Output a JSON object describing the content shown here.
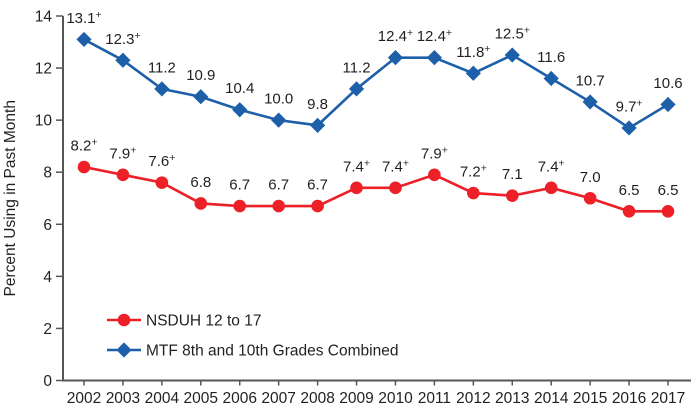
{
  "chart_data": {
    "type": "line",
    "x": [
      2002,
      2003,
      2004,
      2005,
      2006,
      2007,
      2008,
      2009,
      2010,
      2011,
      2012,
      2013,
      2014,
      2015,
      2016,
      2017
    ],
    "series": [
      {
        "name": "NSDUH 12 to 17",
        "color": "#ed2028",
        "marker": "circle",
        "values": [
          8.2,
          7.9,
          7.6,
          6.8,
          6.7,
          6.7,
          6.7,
          7.4,
          7.4,
          7.9,
          7.2,
          7.1,
          7.4,
          7.0,
          6.5,
          6.5
        ],
        "labels": [
          "8.2+",
          "7.9+",
          "7.6+",
          "6.8",
          "6.7",
          "6.7",
          "6.7",
          "7.4+",
          "7.4+",
          "7.9+",
          "7.2+",
          "7.1",
          "7.4+",
          "7.0",
          "6.5",
          "6.5"
        ]
      },
      {
        "name": "MTF 8th and 10th Grades Combined",
        "color": "#1d5fa9",
        "marker": "diamond",
        "values": [
          13.1,
          12.3,
          11.2,
          10.9,
          10.4,
          10.0,
          9.8,
          11.2,
          12.4,
          12.4,
          11.8,
          12.5,
          11.6,
          10.7,
          9.7,
          10.6
        ],
        "labels": [
          "13.1+",
          "12.3+",
          "11.2",
          "10.9",
          "10.4",
          "10.0",
          "9.8",
          "11.2",
          "12.4+",
          "12.4+",
          "11.8+",
          "12.5+",
          "11.6",
          "10.7",
          "9.7+",
          "10.6"
        ]
      }
    ],
    "title": "",
    "xlabel": "",
    "ylabel": "Percent Using in Past Month",
    "ylim": [
      0,
      14
    ],
    "yticks": [
      0,
      2,
      4,
      6,
      8,
      10,
      12,
      14
    ],
    "grid": false,
    "legend_position": "inside-bottom-left",
    "axis_color": "#555658",
    "text_color": "#231f20"
  }
}
